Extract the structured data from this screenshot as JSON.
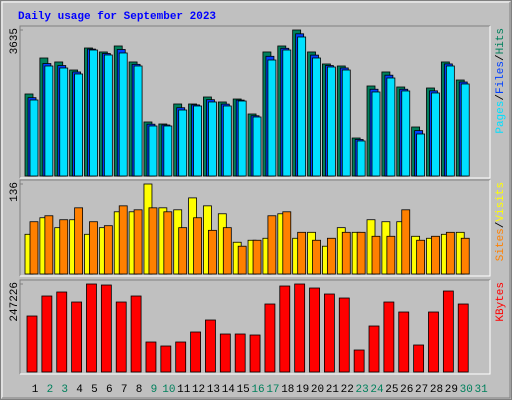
{
  "chart_data": [
    {
      "type": "bar",
      "title": "Daily usage for September 2023",
      "legend_separator": "/",
      "ylim": [
        0,
        3635
      ],
      "yticks": [
        3635
      ],
      "series": [
        {
          "name": "Hits",
          "color": "#00805c",
          "values": [
            2042,
            2938,
            2839,
            2639,
            3187,
            3088,
            3237,
            2839,
            1345,
            1295,
            1793,
            1793,
            1967,
            1843,
            1917,
            1544,
            3088,
            3237,
            3635,
            3088,
            2789,
            2739,
            946,
            2241,
            2590,
            2216,
            1220,
            2191,
            2839,
            2390,
            null
          ]
        },
        {
          "name": "Files",
          "color": "#0040ff",
          "values": [
            1950,
            2800,
            2750,
            2590,
            3160,
            3050,
            3150,
            2780,
            1290,
            1270,
            1700,
            1770,
            1900,
            1790,
            1890,
            1500,
            2980,
            3180,
            3540,
            3010,
            2750,
            2690,
            910,
            2160,
            2510,
            2160,
            1130,
            2120,
            2790,
            2340,
            null
          ]
        },
        {
          "name": "Pages",
          "color": "#00e0ff",
          "values": [
            1892,
            2739,
            2689,
            2540,
            3137,
            3013,
            3063,
            2739,
            1245,
            1245,
            1643,
            1743,
            1843,
            1743,
            1867,
            1469,
            2888,
            3137,
            3461,
            2938,
            2714,
            2639,
            872,
            2092,
            2440,
            2117,
            1046,
            2067,
            2739,
            2291,
            null
          ]
        }
      ]
    },
    {
      "type": "bar",
      "legend_separator": "/",
      "ylim": [
        0,
        136
      ],
      "yticks": [
        136
      ],
      "series": [
        {
          "name": "Visits",
          "color": "#ffff00",
          "values": [
            60,
            85,
            70,
            82,
            60,
            70,
            94,
            94,
            136,
            100,
            97,
            115,
            103,
            91,
            48,
            51,
            54,
            91,
            54,
            63,
            42,
            70,
            63,
            82,
            79,
            79,
            57,
            54,
            60,
            63,
            null
          ]
        },
        {
          "name": "Sites",
          "color": "#ff8000",
          "values": [
            79,
            88,
            82,
            100,
            79,
            73,
            103,
            97,
            100,
            94,
            70,
            85,
            66,
            70,
            42,
            51,
            88,
            94,
            63,
            51,
            54,
            63,
            63,
            57,
            57,
            97,
            51,
            57,
            63,
            54,
            null
          ]
        }
      ]
    },
    {
      "type": "bar",
      "ylim": [
        0,
        247226
      ],
      "yticks": [
        247226
      ],
      "categories": [
        "1",
        "2",
        "3",
        "4",
        "5",
        "6",
        "7",
        "8",
        "9",
        "10",
        "11",
        "12",
        "13",
        "14",
        "15",
        "16",
        "17",
        "18",
        "19",
        "20",
        "21",
        "22",
        "23",
        "24",
        "25",
        "26",
        "27",
        "28",
        "29",
        "30",
        "31"
      ],
      "category_colors": [
        "#000000",
        "#00805c",
        "#00805c",
        "#000000",
        "#000000",
        "#000000",
        "#000000",
        "#000000",
        "#00805c",
        "#00805c",
        "#000000",
        "#000000",
        "#000000",
        "#000000",
        "#000000",
        "#00805c",
        "#00805c",
        "#000000",
        "#000000",
        "#000000",
        "#000000",
        "#000000",
        "#00805c",
        "#00805c",
        "#000000",
        "#000000",
        "#000000",
        "#000000",
        "#000000",
        "#00805c",
        "#00805c"
      ],
      "series": [
        {
          "name": "KBytes",
          "color": "#ff0000",
          "values": [
            157304,
            213496,
            224732,
            196628,
            247226,
            244383,
            196628,
            213496,
            84270,
            73034,
            84270,
            112360,
            146068,
            106742,
            106742,
            103933,
            191012,
            241574,
            247226,
            235956,
            219101,
            207865,
            61798,
            129214,
            196628,
            168539,
            75843,
            168539,
            227528,
            191012,
            null
          ]
        }
      ]
    }
  ]
}
